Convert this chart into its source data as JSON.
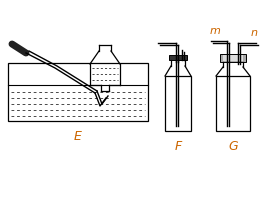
{
  "bg_color": "#ffffff",
  "label_E": "E",
  "label_F": "F",
  "label_G": "G",
  "label_m": "m",
  "label_n": "n",
  "label_color": "#cc6600",
  "line_color": "#000000",
  "figsize": [
    2.66,
    2.07
  ],
  "dpi": 100
}
